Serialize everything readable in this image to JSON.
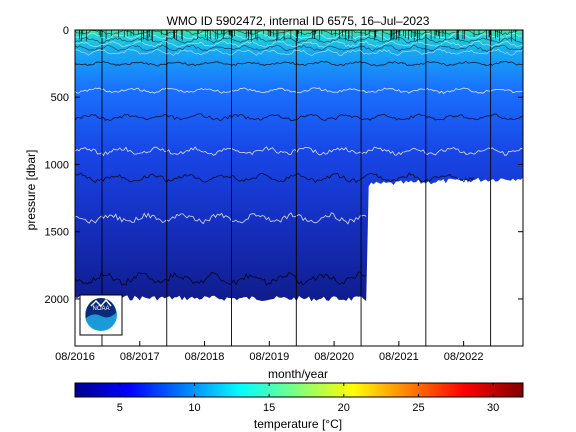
{
  "chart_data": {
    "type": "heatmap",
    "title": "WMO ID 5902472, internal ID 6575, 16–Jul–2023",
    "xlabel": "month/year",
    "ylabel": "pressure [dbar]",
    "x_ticks": [
      "08/2016",
      "08/2017",
      "08/2018",
      "08/2019",
      "08/2020",
      "08/2021",
      "08/2022"
    ],
    "x_range": [
      "2016-08",
      "2023-07"
    ],
    "y_ticks": [
      0,
      500,
      1000,
      1500,
      2000
    ],
    "y_range": [
      0,
      2350
    ],
    "y_reversed": true,
    "colorbar": {
      "label": "temperature [°C]",
      "ticks": [
        5,
        10,
        15,
        20,
        25,
        30
      ],
      "range": [
        2,
        32
      ],
      "colormap": "jet"
    },
    "profile_max_depth": [
      {
        "date": "2016-08",
        "pressure": 1990
      },
      {
        "date": "2021-01",
        "pressure": 2000
      },
      {
        "date": "2021-02",
        "pressure": 1150
      },
      {
        "date": "2023-07",
        "pressure": 1100
      }
    ],
    "isotherm_depths": [
      {
        "temperature": 12,
        "pressure": 250
      },
      {
        "temperature": 10,
        "pressure": 450
      },
      {
        "temperature": 8,
        "pressure": 650
      },
      {
        "temperature": 6,
        "pressure": 900
      },
      {
        "temperature": 5,
        "pressure": 1100
      },
      {
        "temperature": 4,
        "pressure": 1400
      },
      {
        "temperature": 3,
        "pressure": 1850
      }
    ],
    "vertical_markers": [
      "2017-01",
      "2018-01",
      "2019-01",
      "2020-01",
      "2021-01",
      "2022-01",
      "2023-01"
    ],
    "logo": "noaa-logo"
  },
  "colors": {
    "surface": "#20d0e0",
    "mid": "#1a5cff",
    "deep": "#10208a",
    "contour_light": "#ffffff",
    "contour_dark": "#000000"
  }
}
